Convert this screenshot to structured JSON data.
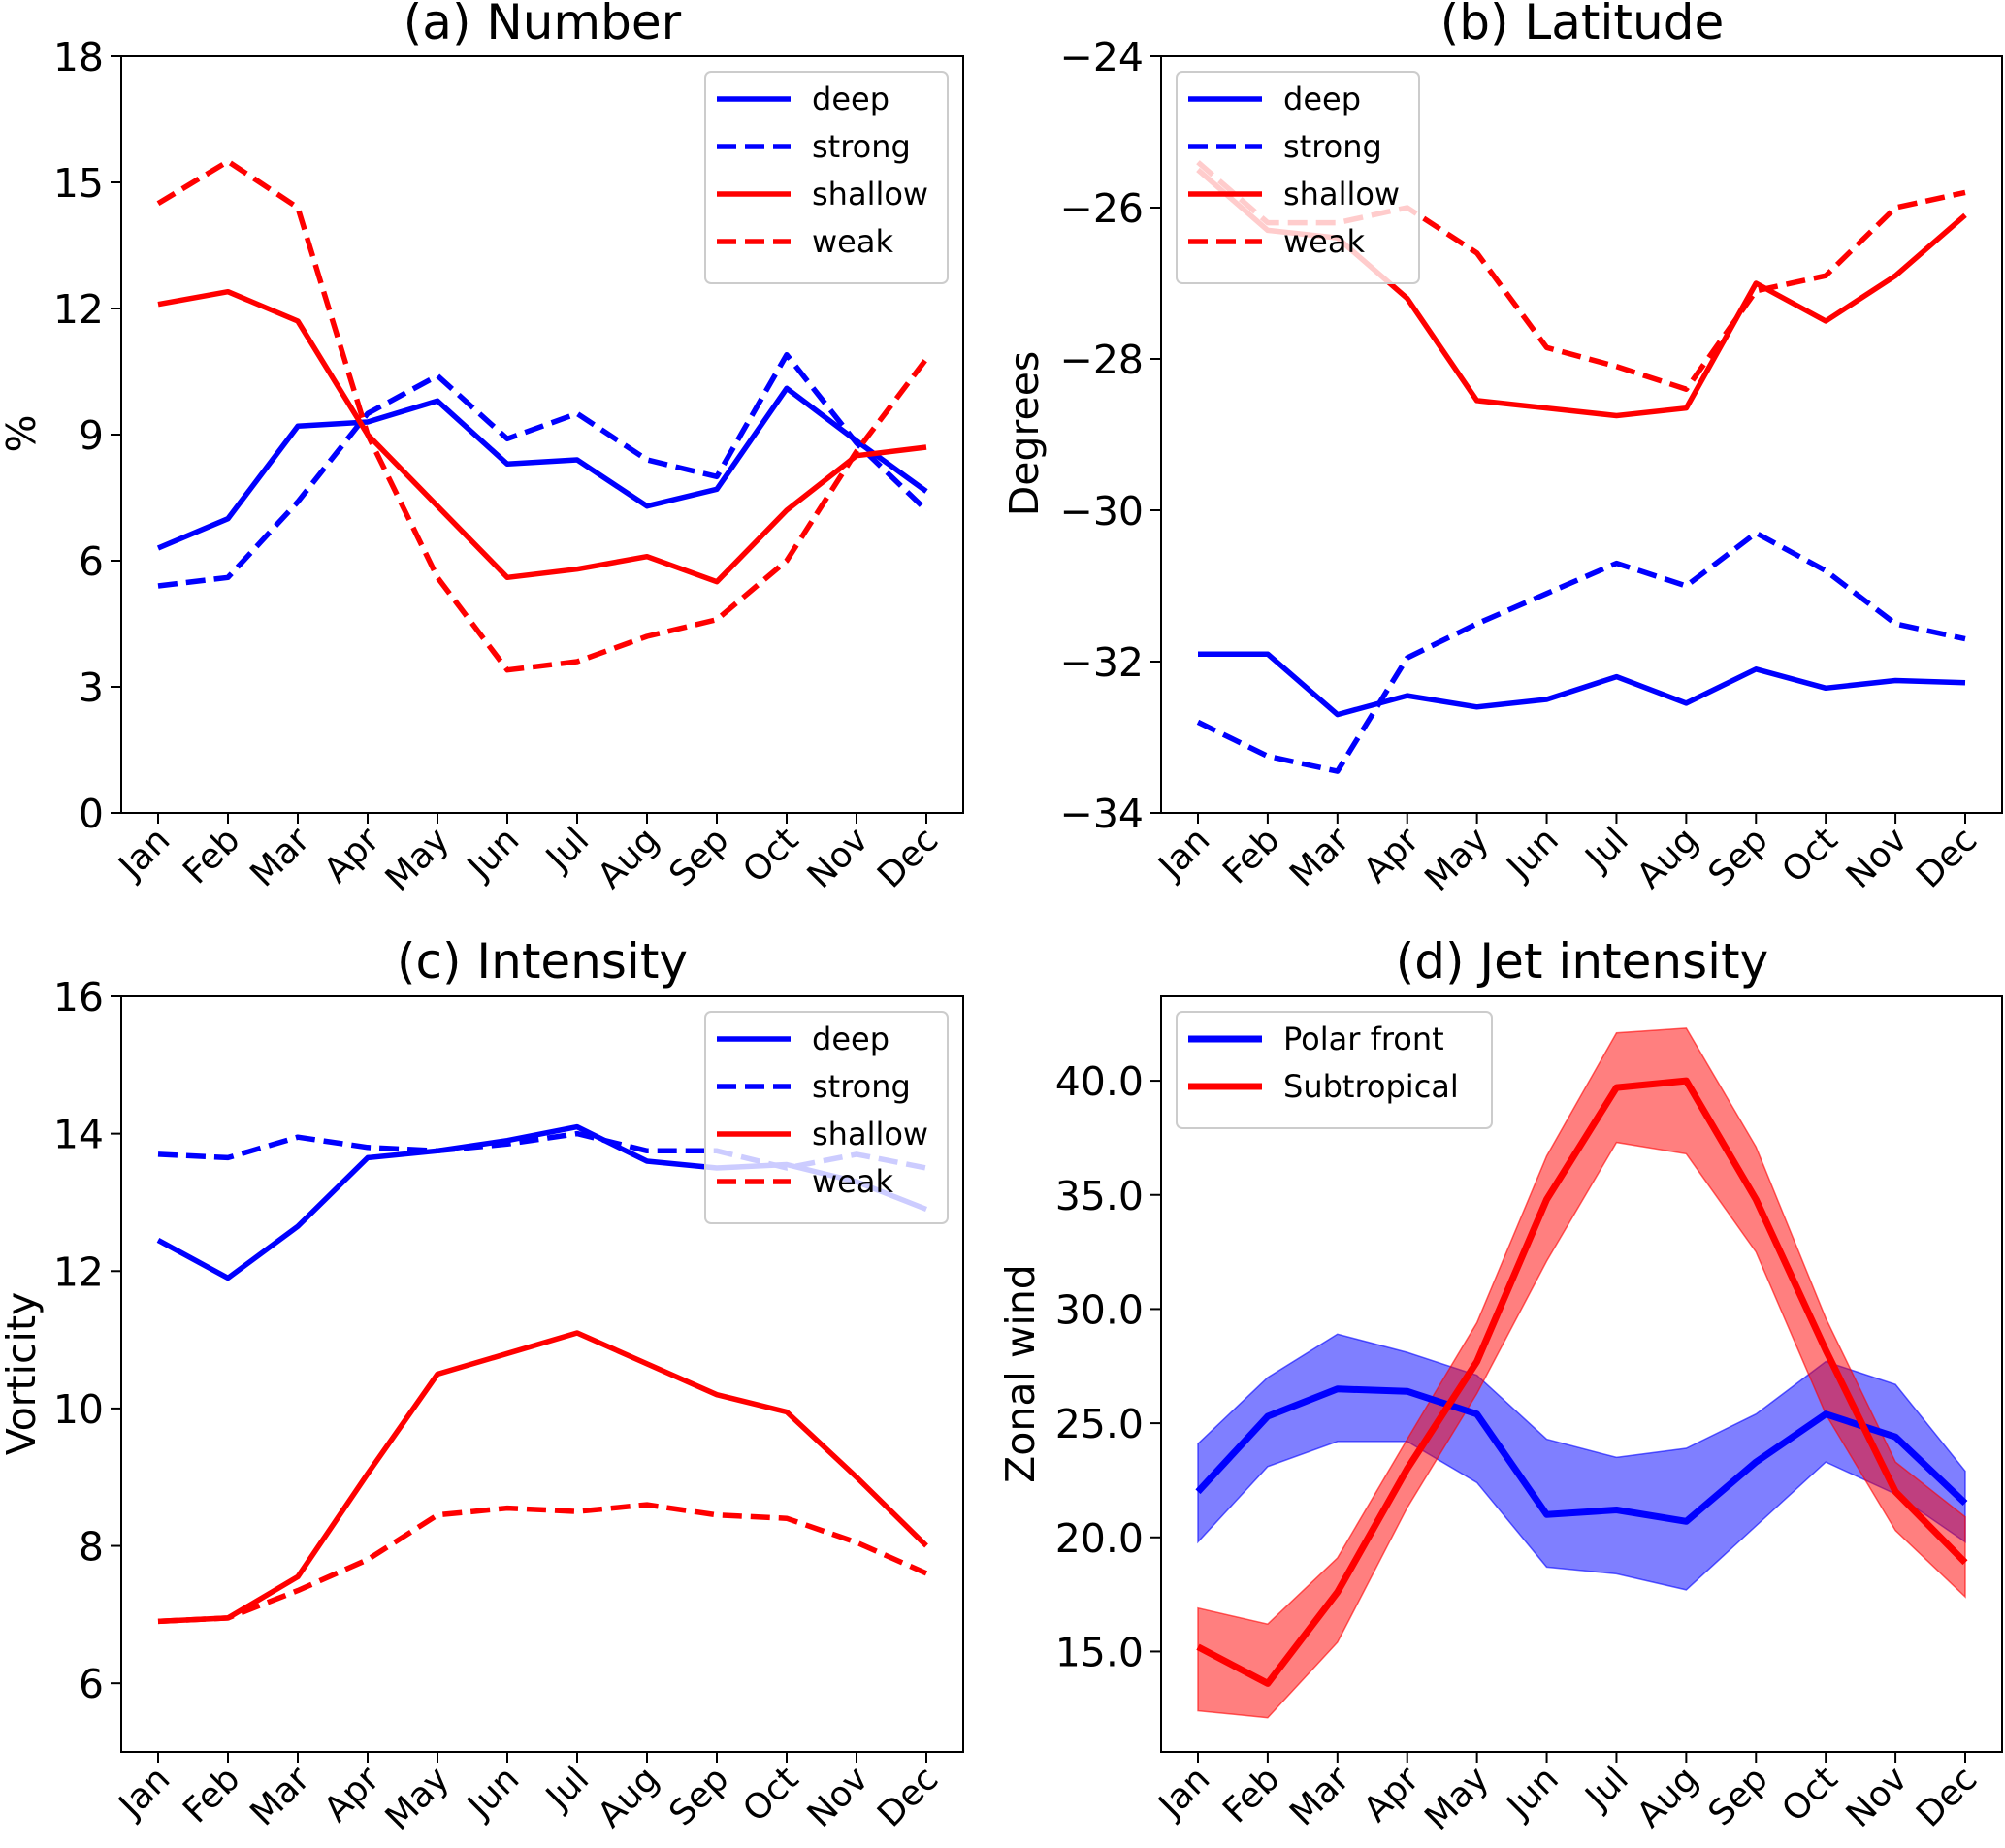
{
  "chart_data": [
    {
      "id": "a",
      "type": "line",
      "title": "(a) Number",
      "xlabel": "",
      "ylabel": "%",
      "categories": [
        "Jan",
        "Feb",
        "Mar",
        "Apr",
        "May",
        "Jun",
        "Jul",
        "Aug",
        "Sep",
        "Oct",
        "Nov",
        "Dec"
      ],
      "ylim": [
        0,
        18
      ],
      "yticks": [
        0,
        3,
        6,
        9,
        12,
        15,
        18
      ],
      "ytick_labels": [
        "0",
        "3",
        "6",
        "9",
        "12",
        "15",
        "18"
      ],
      "grid": false,
      "legend_position": "top-right",
      "series": [
        {
          "name": "deep",
          "color": "#0000ff",
          "style": "solid",
          "values": [
            6.3,
            7.0,
            9.2,
            9.3,
            9.8,
            8.3,
            8.4,
            7.3,
            7.7,
            10.1,
            8.85,
            7.65
          ]
        },
        {
          "name": "strong",
          "color": "#0000ff",
          "style": "dashed",
          "values": [
            5.4,
            5.6,
            7.4,
            9.5,
            10.4,
            8.9,
            9.5,
            8.4,
            8.0,
            10.9,
            8.8,
            7.2
          ]
        },
        {
          "name": "shallow",
          "color": "#ff0000",
          "style": "solid",
          "values": [
            12.1,
            12.4,
            11.7,
            9.0,
            7.3,
            5.6,
            5.8,
            6.1,
            5.5,
            7.2,
            8.5,
            8.7
          ]
        },
        {
          "name": "weak",
          "color": "#ff0000",
          "style": "dashed",
          "values": [
            14.5,
            15.5,
            14.4,
            9.0,
            5.6,
            3.4,
            3.6,
            4.2,
            4.6,
            6.0,
            8.6,
            10.8
          ]
        }
      ]
    },
    {
      "id": "b",
      "type": "line",
      "title": "(b) Latitude",
      "xlabel": "",
      "ylabel": "Degrees",
      "categories": [
        "Jan",
        "Feb",
        "Mar",
        "Apr",
        "May",
        "Jun",
        "Jul",
        "Aug",
        "Sep",
        "Oct",
        "Nov",
        "Dec"
      ],
      "ylim": [
        -34,
        -24
      ],
      "yticks": [
        -34,
        -32,
        -30,
        -28,
        -26,
        -24
      ],
      "ytick_labels": [
        "−34",
        "−32",
        "−30",
        "−28",
        "−26",
        "−24"
      ],
      "grid": false,
      "legend_position": "top-left",
      "series": [
        {
          "name": "deep",
          "color": "#0000ff",
          "style": "solid",
          "values": [
            -31.9,
            -31.9,
            -32.7,
            -32.45,
            -32.6,
            -32.5,
            -32.2,
            -32.55,
            -32.1,
            -32.35,
            -32.25,
            -32.28
          ]
        },
        {
          "name": "strong",
          "color": "#0000ff",
          "style": "dashed",
          "values": [
            -32.8,
            -33.25,
            -33.45,
            -31.95,
            -31.5,
            -31.1,
            -30.7,
            -31.0,
            -30.3,
            -30.8,
            -31.5,
            -31.7
          ]
        },
        {
          "name": "shallow",
          "color": "#ff0000",
          "style": "solid",
          "values": [
            -25.5,
            -26.3,
            -26.4,
            -27.2,
            -28.55,
            -28.65,
            -28.75,
            -28.65,
            -27.0,
            -27.5,
            -26.9,
            -26.1
          ]
        },
        {
          "name": "weak",
          "color": "#ff0000",
          "style": "dashed",
          "values": [
            -25.4,
            -26.2,
            -26.2,
            -26.0,
            -26.6,
            -27.85,
            -28.1,
            -28.4,
            -27.1,
            -26.9,
            -26.0,
            -25.8
          ]
        }
      ]
    },
    {
      "id": "c",
      "type": "line",
      "title": "(c) Intensity",
      "xlabel": "",
      "ylabel": "Vorticity",
      "categories": [
        "Jan",
        "Feb",
        "Mar",
        "Apr",
        "May",
        "Jun",
        "Jul",
        "Aug",
        "Sep",
        "Oct",
        "Nov",
        "Dec"
      ],
      "ylim": [
        5.0,
        16
      ],
      "yticks": [
        6,
        8,
        10,
        12,
        14,
        16
      ],
      "ytick_labels": [
        "6",
        "8",
        "10",
        "12",
        "14",
        "16"
      ],
      "grid": false,
      "legend_position": "top-right",
      "series": [
        {
          "name": "deep",
          "color": "#0000ff",
          "style": "solid",
          "values": [
            12.45,
            11.9,
            12.65,
            13.65,
            13.75,
            13.9,
            14.1,
            13.6,
            13.5,
            13.55,
            13.3,
            12.9
          ]
        },
        {
          "name": "strong",
          "color": "#0000ff",
          "style": "dashed",
          "values": [
            13.7,
            13.65,
            13.95,
            13.8,
            13.75,
            13.85,
            14.0,
            13.75,
            13.75,
            13.5,
            13.7,
            13.5
          ]
        },
        {
          "name": "shallow",
          "color": "#ff0000",
          "style": "solid",
          "values": [
            6.9,
            6.95,
            7.55,
            9.05,
            10.5,
            10.8,
            11.1,
            10.65,
            10.2,
            9.95,
            9.0,
            8.0
          ]
        },
        {
          "name": "weak",
          "color": "#ff0000",
          "style": "dashed",
          "values": [
            6.9,
            6.95,
            7.35,
            7.8,
            8.45,
            8.55,
            8.5,
            8.6,
            8.45,
            8.4,
            8.05,
            7.6
          ]
        }
      ]
    },
    {
      "id": "d",
      "type": "area",
      "title": "(d) Jet intensity",
      "xlabel": "",
      "ylabel": "Zonal wind",
      "categories": [
        "Jan",
        "Feb",
        "Mar",
        "Apr",
        "May",
        "Jun",
        "Jul",
        "Aug",
        "Sep",
        "Oct",
        "Nov",
        "Dec"
      ],
      "ylim": [
        10.6,
        43.7
      ],
      "yticks": [
        15,
        20,
        25,
        30,
        35,
        40
      ],
      "ytick_labels": [
        "15.0",
        "20.0",
        "25.0",
        "30.0",
        "35.0",
        "40.0"
      ],
      "grid": false,
      "legend_position": "top-left",
      "series": [
        {
          "name": "Polar front",
          "color": "#0000ff",
          "style": "solid",
          "values": [
            22.0,
            25.3,
            26.5,
            26.4,
            25.4,
            21.0,
            21.2,
            20.7,
            23.3,
            25.4,
            24.4,
            21.5
          ],
          "upper": [
            24.1,
            27.0,
            28.9,
            28.1,
            27.1,
            24.3,
            23.5,
            23.9,
            25.4,
            27.7,
            26.7,
            22.9
          ],
          "lower": [
            19.8,
            23.1,
            24.2,
            24.2,
            22.4,
            18.7,
            18.4,
            17.7,
            20.5,
            23.3,
            21.9,
            19.8
          ]
        },
        {
          "name": "Subtropical",
          "color": "#ff0000",
          "style": "solid",
          "values": [
            15.2,
            13.6,
            17.6,
            23.0,
            27.7,
            34.8,
            39.7,
            40.0,
            34.8,
            28.2,
            22.0,
            18.9
          ],
          "upper": [
            16.9,
            16.2,
            19.1,
            24.3,
            29.4,
            36.7,
            42.1,
            42.3,
            37.1,
            29.6,
            23.3,
            20.9
          ],
          "lower": [
            12.4,
            12.1,
            15.4,
            21.3,
            26.3,
            32.1,
            37.3,
            36.8,
            32.5,
            25.4,
            20.3,
            17.4
          ]
        }
      ]
    }
  ]
}
